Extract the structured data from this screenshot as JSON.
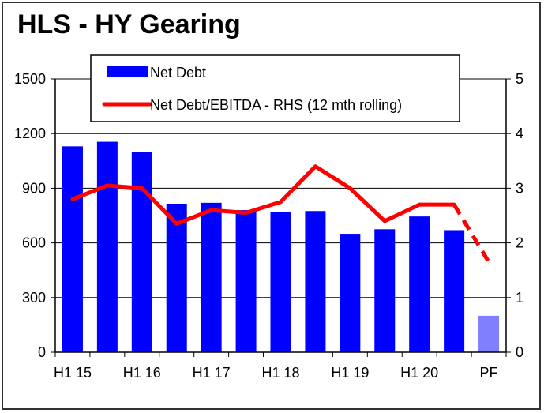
{
  "chart_data": {
    "type": "bar",
    "title": "HLS - HY Gearing",
    "x_tick_labels": [
      "H1 15",
      "H1 16",
      "H1 17",
      "H1 18",
      "H1 19",
      "H1 20",
      "PF"
    ],
    "left_axis": {
      "ylim": [
        0,
        1500
      ],
      "ticks": [
        "0",
        "300",
        "600",
        "900",
        "1200",
        "1500"
      ]
    },
    "right_axis": {
      "ylim": [
        0,
        5
      ],
      "ticks": [
        "0",
        "1",
        "2",
        "3",
        "4",
        "5"
      ]
    },
    "series": [
      {
        "name": "Net Debt",
        "kind": "bar",
        "color": "#0000ff",
        "values": [
          1130,
          1155,
          1100,
          815,
          820,
          780,
          770,
          775,
          650,
          675,
          745,
          670,
          200
        ],
        "highlight": {
          "index": 12,
          "color": "#8080ff"
        }
      },
      {
        "name": "Net Debt/EBITDA - RHS (12 mth rolling)",
        "kind": "line",
        "axis": "right",
        "color": "#ff0000",
        "values": [
          2.8,
          3.05,
          3.0,
          2.35,
          2.6,
          2.55,
          2.75,
          3.4,
          3.0,
          2.4,
          2.7,
          2.7,
          1.65
        ],
        "dashed_from_index": 11
      }
    ],
    "grid": true,
    "legend": "top"
  }
}
